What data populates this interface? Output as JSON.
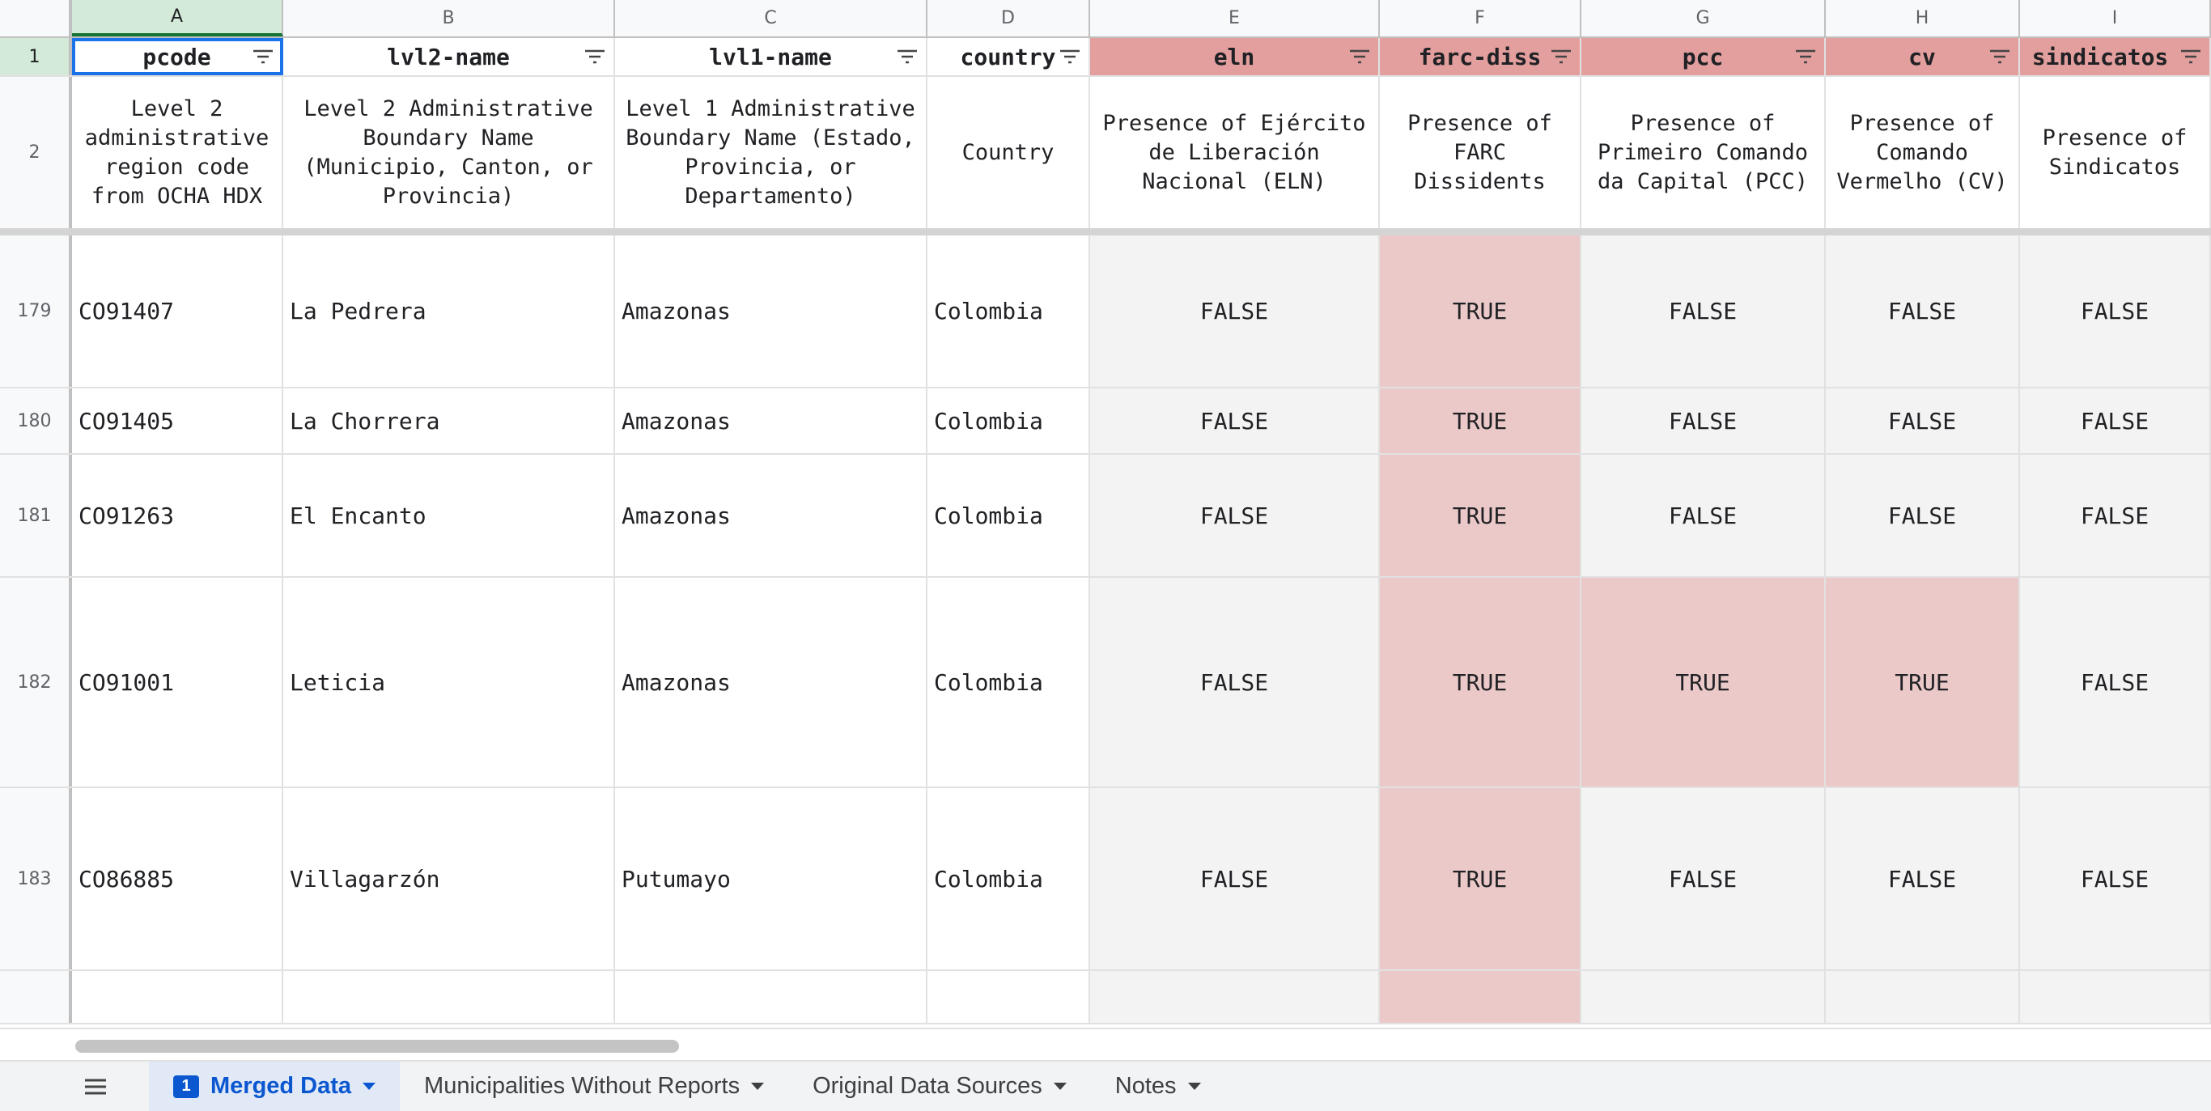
{
  "columns": [
    "A",
    "B",
    "C",
    "D",
    "E",
    "F",
    "G",
    "H",
    "I"
  ],
  "header_row_number": "1",
  "desc_row_number": "2",
  "headers": [
    "pcode",
    "lvl2-name",
    "lvl1-name",
    "country",
    "eln",
    "farc-diss",
    "pcc",
    "cv",
    "sindicatos"
  ],
  "descriptions": [
    "Level 2 administrative region code from OCHA HDX",
    "Level 2 Administrative Boundary Name (Municipio, Canton, or Provincia)",
    "Level 1 Administrative Boundary Name (Estado, Provincia, or Departamento)",
    "Country",
    "Presence of Ejército de Liberación Nacional (ELN)",
    "Presence of FARC Dissidents",
    "Presence of Primeiro Comando da Capital (PCC)",
    "Presence of Comando Vermelho (CV)",
    "Presence of Sindicatos"
  ],
  "rows": [
    {
      "num": "179",
      "cells": [
        "CO91407",
        "La Pedrera",
        "Amazonas",
        "Colombia",
        "FALSE",
        "TRUE",
        "FALSE",
        "FALSE",
        "FALSE"
      ]
    },
    {
      "num": "180",
      "cells": [
        "CO91405",
        "La Chorrera",
        "Amazonas",
        "Colombia",
        "FALSE",
        "TRUE",
        "FALSE",
        "FALSE",
        "FALSE"
      ]
    },
    {
      "num": "181",
      "cells": [
        "CO91263",
        "El Encanto",
        "Amazonas",
        "Colombia",
        "FALSE",
        "TRUE",
        "FALSE",
        "FALSE",
        "FALSE"
      ]
    },
    {
      "num": "182",
      "cells": [
        "CO91001",
        "Leticia",
        "Amazonas",
        "Colombia",
        "FALSE",
        "TRUE",
        "TRUE",
        "TRUE",
        "FALSE"
      ]
    },
    {
      "num": "183",
      "cells": [
        "CO86885",
        "Villagarzón",
        "Putumayo",
        "Colombia",
        "FALSE",
        "TRUE",
        "FALSE",
        "FALSE",
        "FALSE"
      ]
    },
    {
      "num": "",
      "cells": [
        "",
        "",
        "",
        "",
        "",
        "",
        "",
        "",
        ""
      ]
    }
  ],
  "colors": {
    "header_red": "#e39e9e",
    "true_fill": "#ecc9c9",
    "false_fill": "#f3f3f3",
    "selection_blue": "#1a73e8",
    "selected_header_green": "#d3ead8"
  },
  "tabs": {
    "menu_icon": "hamburger-menu-icon",
    "active_badge": "1",
    "items": [
      "Merged Data",
      "Municipalities Without Reports",
      "Original Data Sources",
      "Notes"
    ]
  }
}
